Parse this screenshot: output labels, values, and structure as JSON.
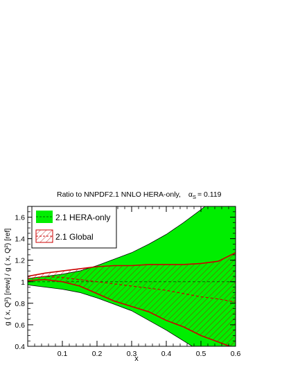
{
  "chart_data": {
    "type": "area",
    "title": "Ratio to NNPDF2.1 NNLO HERA-only,",
    "title_alpha": "α",
    "title_alpha_sub": "S",
    "title_alpha_value": "= 0.119",
    "xlabel": "x",
    "ylabel": "g ( x, Q²) [new] / g ( x, Q²) [ref]",
    "xlim": [
      0.0,
      0.6
    ],
    "ylim": [
      0.4,
      1.7
    ],
    "xticks": [
      0.1,
      0.2,
      0.3,
      0.4,
      0.5,
      0.6
    ],
    "xtick_labels": [
      "0.1",
      "0.2",
      "0.3",
      "0.4",
      "0.5",
      "0.6"
    ],
    "yticks": [
      0.4,
      0.6,
      0.8,
      1.0,
      1.2,
      1.4,
      1.6
    ],
    "ytick_labels": [
      "0.4",
      "0.6",
      "0.8",
      "1",
      "1.2",
      "1.4",
      "1.6"
    ],
    "grid": false,
    "legend_position": "top-left",
    "series": [
      {
        "name": "2.1 HERA-only",
        "style": "green-band",
        "color": "#00ee00",
        "x": [
          0.0,
          0.05,
          0.1,
          0.15,
          0.2,
          0.25,
          0.3,
          0.35,
          0.4,
          0.45,
          0.5,
          0.55,
          0.6
        ],
        "central": [
          1.0,
          1.0,
          1.0,
          1.0,
          1.0,
          1.0,
          1.0,
          1.0,
          1.0,
          1.0,
          1.0,
          1.0,
          1.0
        ],
        "upper": [
          1.03,
          1.05,
          1.07,
          1.1,
          1.15,
          1.21,
          1.27,
          1.35,
          1.44,
          1.55,
          1.67,
          1.8,
          1.95
        ],
        "lower": [
          0.97,
          0.95,
          0.93,
          0.9,
          0.85,
          0.79,
          0.73,
          0.64,
          0.55,
          0.45,
          0.35,
          0.25,
          0.12
        ]
      },
      {
        "name": "2.1 Global",
        "style": "red-hatched-band",
        "color": "#cc0000",
        "x": [
          0.0,
          0.05,
          0.1,
          0.15,
          0.2,
          0.25,
          0.3,
          0.35,
          0.4,
          0.45,
          0.5,
          0.55,
          0.6
        ],
        "central": [
          1.03,
          1.05,
          1.04,
          1.02,
          1.0,
          0.98,
          0.96,
          0.94,
          0.92,
          0.89,
          0.86,
          0.84,
          0.81
        ],
        "upper": [
          1.05,
          1.08,
          1.1,
          1.12,
          1.14,
          1.15,
          1.15,
          1.16,
          1.16,
          1.16,
          1.17,
          1.19,
          1.27
        ],
        "lower": [
          1.01,
          1.02,
          1.0,
          0.96,
          0.89,
          0.82,
          0.77,
          0.72,
          0.64,
          0.58,
          0.5,
          0.44,
          0.38
        ]
      }
    ]
  }
}
